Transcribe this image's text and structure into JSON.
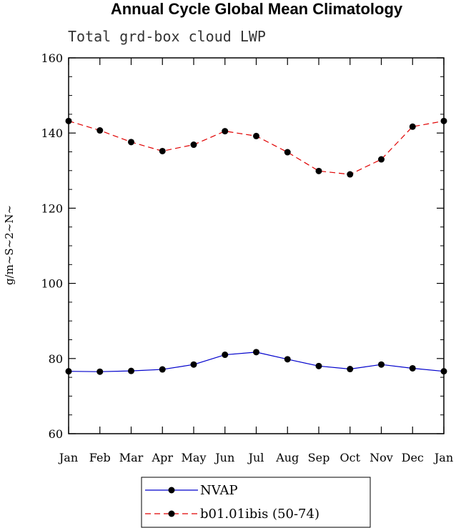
{
  "chart_data": {
    "type": "line",
    "title": "Annual Cycle Global Mean Climatology",
    "subtitle": "Total grd-box cloud LWP",
    "xlabel": "",
    "ylabel": "g/m~S~2~N~",
    "categories": [
      "Jan",
      "Feb",
      "Mar",
      "Apr",
      "May",
      "Jun",
      "Jul",
      "Aug",
      "Sep",
      "Oct",
      "Nov",
      "Dec",
      "Jan"
    ],
    "ylim": [
      60,
      160
    ],
    "yticks": [
      60,
      80,
      100,
      120,
      140,
      160
    ],
    "series": [
      {
        "name": "NVAP",
        "color": "#0000cc",
        "dash": "solid",
        "values": [
          76.6,
          76.5,
          76.7,
          77.1,
          78.4,
          81.0,
          81.7,
          79.8,
          78.0,
          77.2,
          78.4,
          77.4,
          76.6
        ]
      },
      {
        "name": "b01.01ibis (50-74)",
        "color": "#e00000",
        "dash": "dashed",
        "values": [
          143.2,
          140.7,
          137.6,
          135.2,
          136.9,
          140.5,
          139.2,
          134.9,
          129.9,
          129.0,
          133.0,
          141.7,
          143.2
        ]
      }
    ],
    "grid": false,
    "legend_position": "bottom"
  }
}
